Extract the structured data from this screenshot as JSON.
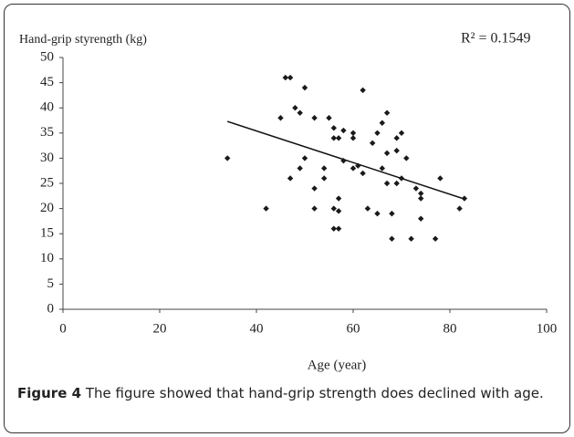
{
  "chart_data": {
    "type": "scatter",
    "ylabel": "Hand-grip styrength (kg)",
    "xlabel": "Age (year)",
    "annotation": "R² = 0.1549",
    "caption_label": "Figure 4",
    "caption_text": "The figure showed that hand-grip strength does declined with age.",
    "color": "#1a1a1a",
    "xlim": [
      0,
      100
    ],
    "xticks": [
      0,
      20,
      40,
      60,
      80,
      100
    ],
    "ylim": [
      0,
      50
    ],
    "yticks": [
      0,
      5,
      10,
      15,
      20,
      25,
      30,
      35,
      40,
      45,
      50
    ],
    "x": [
      34,
      42,
      46,
      47,
      45,
      47,
      48,
      49,
      49,
      50,
      50,
      52,
      52,
      52,
      54,
      54,
      55,
      56,
      56,
      56,
      56,
      57,
      57,
      57,
      57,
      58,
      58,
      60,
      60,
      60,
      61,
      62,
      62,
      63,
      64,
      65,
      65,
      66,
      66,
      67,
      67,
      67,
      68,
      68,
      69,
      69,
      69,
      70,
      70,
      71,
      72,
      73,
      74,
      74,
      74,
      77,
      78,
      82,
      83
    ],
    "values": [
      30,
      20,
      46,
      46,
      38,
      26,
      40,
      39,
      28,
      44,
      30,
      38,
      24,
      20,
      28,
      26,
      38,
      36,
      34,
      20,
      16,
      34,
      22,
      19.5,
      16,
      35.5,
      29.5,
      35,
      34,
      28,
      28.5,
      27,
      43.5,
      20,
      33,
      35,
      19,
      37,
      28,
      39,
      31,
      25,
      19,
      14,
      34,
      31.5,
      25,
      35,
      26,
      30,
      14,
      24,
      23,
      22,
      18,
      14,
      26,
      20,
      22
    ],
    "trendline": {
      "x": [
        34,
        83
      ],
      "y": [
        37.3,
        21.9
      ]
    }
  }
}
